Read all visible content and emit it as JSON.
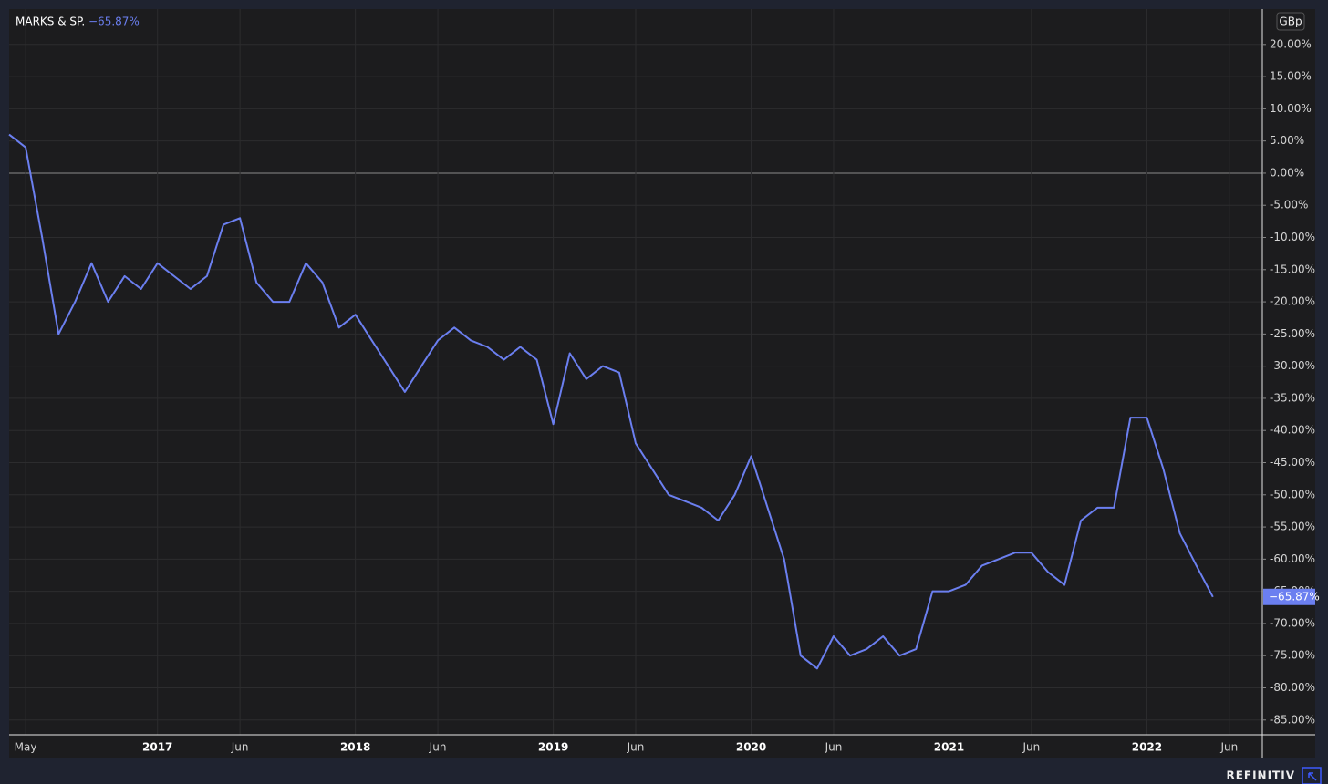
{
  "chart_data": {
    "type": "line",
    "currency": "GBp",
    "brand": "REFINITIV",
    "last_value": {
      "value": -65.87,
      "label": "−65.87%"
    },
    "baseline": 0,
    "grid": true,
    "x": [
      "2016-04",
      "2016-05",
      "2016-06",
      "2016-07",
      "2016-08",
      "2016-09",
      "2016-10",
      "2016-11",
      "2016-12",
      "2017-01",
      "2017-02",
      "2017-03",
      "2017-04",
      "2017-05",
      "2017-06",
      "2017-07",
      "2017-08",
      "2017-09",
      "2017-10",
      "2017-11",
      "2017-12",
      "2018-01",
      "2018-02",
      "2018-03",
      "2018-04",
      "2018-05",
      "2018-06",
      "2018-07",
      "2018-08",
      "2018-09",
      "2018-10",
      "2018-11",
      "2018-12",
      "2019-01",
      "2019-02",
      "2019-03",
      "2019-04",
      "2019-05",
      "2019-06",
      "2019-07",
      "2019-08",
      "2019-09",
      "2019-10",
      "2019-11",
      "2019-12",
      "2020-01",
      "2020-02",
      "2020-03",
      "2020-04",
      "2020-05",
      "2020-06",
      "2020-07",
      "2020-08",
      "2020-09",
      "2020-10",
      "2020-11",
      "2020-12",
      "2021-01",
      "2021-02",
      "2021-03",
      "2021-04",
      "2021-05",
      "2021-06",
      "2021-07",
      "2021-08",
      "2021-09",
      "2021-10",
      "2021-11",
      "2021-12",
      "2022-01",
      "2022-02",
      "2022-03",
      "2022-04",
      "2022-05"
    ],
    "series": [
      {
        "name": "MARKS & SP.",
        "color": "#6b7ff0",
        "values": [
          6,
          4,
          -10,
          -25,
          -20,
          -14,
          -20,
          -16,
          -18,
          -14,
          -16,
          -18,
          -16,
          -8,
          -7,
          -17,
          -20,
          -20,
          -14,
          -17,
          -24,
          -22,
          -26,
          -30,
          -34,
          -30,
          -26,
          -24,
          -26,
          -27,
          -29,
          -27,
          -29,
          -39,
          -28,
          -32,
          -30,
          -31,
          -42,
          -46,
          -50,
          -51,
          -52,
          -54,
          -50,
          -44,
          -52,
          -60,
          -75,
          -77,
          -72,
          -75,
          -74,
          -72,
          -75,
          -74,
          -65,
          -65,
          -64,
          -61,
          -60,
          -59,
          -59,
          -62,
          -64,
          -54,
          -52,
          -52,
          -38,
          -38,
          -46,
          -56,
          -61,
          -65.87
        ]
      }
    ],
    "xlim": [
      "2016-04",
      "2022-08"
    ],
    "xticks": [
      {
        "value": "2016-05",
        "label": "May"
      },
      {
        "value": "2017-01",
        "label": "2017"
      },
      {
        "value": "2017-06",
        "label": "Jun"
      },
      {
        "value": "2018-01",
        "label": "2018"
      },
      {
        "value": "2018-06",
        "label": "Jun"
      },
      {
        "value": "2019-01",
        "label": "2019"
      },
      {
        "value": "2019-06",
        "label": "Jun"
      },
      {
        "value": "2020-01",
        "label": "2020"
      },
      {
        "value": "2020-06",
        "label": "Jun"
      },
      {
        "value": "2021-01",
        "label": "2021"
      },
      {
        "value": "2021-06",
        "label": "Jun"
      },
      {
        "value": "2022-01",
        "label": "2022"
      },
      {
        "value": "2022-06",
        "label": "Jun"
      }
    ],
    "ylim": [
      -87.3,
      25.5
    ],
    "yticks": [
      {
        "value": 20,
        "label": "20.00%"
      },
      {
        "value": 15,
        "label": "15.00%"
      },
      {
        "value": 10,
        "label": "10.00%"
      },
      {
        "value": 5,
        "label": "5.00%"
      },
      {
        "value": 0,
        "label": "0.00%"
      },
      {
        "value": -5,
        "label": "-5.00%"
      },
      {
        "value": -10,
        "label": "-10.00%"
      },
      {
        "value": -15,
        "label": "-15.00%"
      },
      {
        "value": -20,
        "label": "-20.00%"
      },
      {
        "value": -25,
        "label": "-25.00%"
      },
      {
        "value": -30,
        "label": "-30.00%"
      },
      {
        "value": -35,
        "label": "-35.00%"
      },
      {
        "value": -40,
        "label": "-40.00%"
      },
      {
        "value": -45,
        "label": "-45.00%"
      },
      {
        "value": -50,
        "label": "-50.00%"
      },
      {
        "value": -55,
        "label": "-55.00%"
      },
      {
        "value": -60,
        "label": "-60.00%"
      },
      {
        "value": -65,
        "label": "-65.00%"
      },
      {
        "value": -70,
        "label": "-70.00%"
      },
      {
        "value": -75,
        "label": "-75.00%"
      },
      {
        "value": -80,
        "label": "-80.00%"
      },
      {
        "value": -85,
        "label": "-85.00%"
      }
    ]
  }
}
